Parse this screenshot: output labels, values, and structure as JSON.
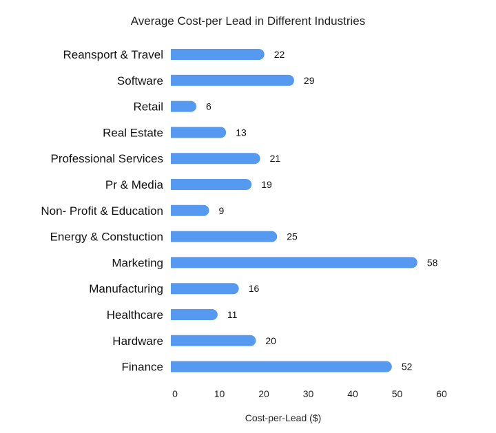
{
  "chart_data": {
    "type": "bar",
    "orientation": "horizontal",
    "title": "Average Cost-per Lead in Different Industries",
    "xlabel": "Cost-per-Lead ($)",
    "ylabel": "",
    "categories": [
      "Reansport & Travel",
      "Software",
      "Retail",
      "Real Estate",
      "Professional Services",
      "Pr & Media",
      "Non- Profit & Education",
      "Energy & Constuction",
      "Marketing",
      "Manufacturing",
      "Healthcare",
      "Hardware",
      "Finance"
    ],
    "values": [
      22,
      29,
      6,
      13,
      21,
      19,
      9,
      25,
      58,
      16,
      11,
      20,
      52
    ],
    "xlim": [
      0,
      60
    ],
    "xticks": [
      "0",
      "10",
      "20",
      "30",
      "40",
      "50",
      "60"
    ],
    "grid": false,
    "legend": "none",
    "bar_color": "#5599F0"
  }
}
